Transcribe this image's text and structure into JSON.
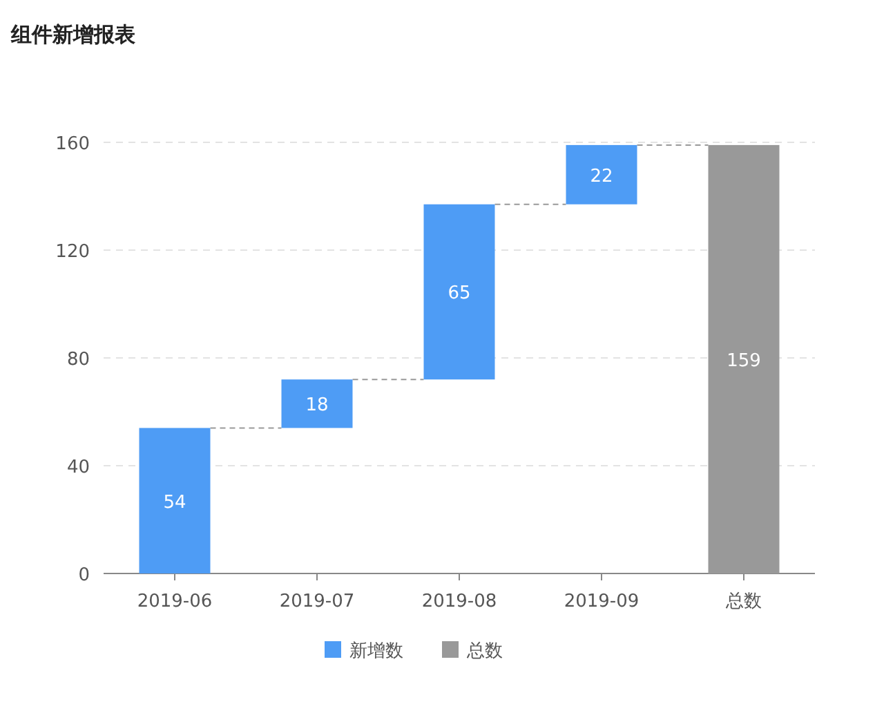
{
  "chart_data": {
    "type": "bar",
    "title": "组件新增报表",
    "categories": [
      "2019-06",
      "2019-07",
      "2019-08",
      "2019-09",
      "总数"
    ],
    "series": [
      {
        "name": "新增数",
        "color": "#4e9cf5",
        "values": [
          54,
          18,
          65,
          22,
          null
        ],
        "base": [
          0,
          54,
          72,
          137,
          null
        ]
      },
      {
        "name": "总数",
        "color": "#999999",
        "values": [
          null,
          null,
          null,
          null,
          159
        ],
        "base": [
          null,
          null,
          null,
          null,
          0
        ]
      }
    ],
    "ylim": [
      0,
      160
    ],
    "yticks": [
      0,
      40,
      80,
      120,
      160
    ],
    "grid": "y",
    "data_labels": true,
    "legend": "bottom"
  }
}
